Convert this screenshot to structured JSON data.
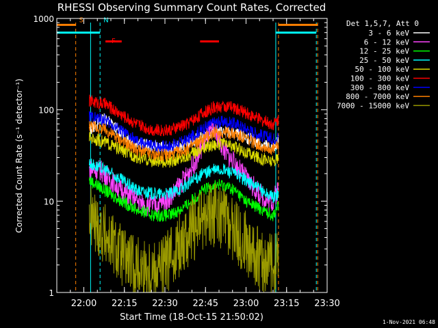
{
  "chart_data": {
    "type": "line",
    "title": "RHESSI Observing Summary Count Rates, Corrected",
    "xlabel": "Start Time (18-Oct-15 21:50:02)",
    "ylabel": "Corrected Count Rate (s⁻¹ detector⁻¹)",
    "yscale": "log",
    "ylim": [
      1,
      1000
    ],
    "xlim_minutes": [
      -10,
      90
    ],
    "x_ticks": [
      {
        "t": 0,
        "label": "22:00"
      },
      {
        "t": 15,
        "label": "22:15"
      },
      {
        "t": 30,
        "label": "22:30"
      },
      {
        "t": 45,
        "label": "22:45"
      },
      {
        "t": 60,
        "label": "23:00"
      },
      {
        "t": 75,
        "label": "23:15"
      },
      {
        "t": 90,
        "label": "23:30"
      }
    ],
    "y_ticks": [
      {
        "v": 1,
        "label": "1"
      },
      {
        "v": 10,
        "label": "10"
      },
      {
        "v": 100,
        "label": "100"
      },
      {
        "v": 1000,
        "label": "1000"
      }
    ],
    "legend_title": "Det 1,5,7, Att 0",
    "legend_position": "right",
    "series": [
      {
        "name": "3 - 6 keV",
        "color": "#ffffff",
        "points": [
          [
            2,
            60
          ],
          [
            8,
            82
          ],
          [
            12,
            62
          ],
          [
            18,
            46
          ],
          [
            24,
            40
          ],
          [
            30,
            38
          ],
          [
            36,
            40
          ],
          [
            42,
            48
          ],
          [
            48,
            58
          ],
          [
            54,
            56
          ],
          [
            60,
            50
          ],
          [
            66,
            42
          ],
          [
            70,
            38
          ],
          [
            72,
            46
          ]
        ]
      },
      {
        "name": "6 - 12 keV",
        "color": "#ff44ff",
        "points": [
          [
            2,
            22
          ],
          [
            6,
            22
          ],
          [
            10,
            17
          ],
          [
            14,
            13
          ],
          [
            18,
            11
          ],
          [
            22,
            9
          ],
          [
            26,
            9
          ],
          [
            30,
            10
          ],
          [
            34,
            13
          ],
          [
            38,
            19
          ],
          [
            42,
            30
          ],
          [
            45,
            48
          ],
          [
            48,
            60
          ],
          [
            52,
            36
          ],
          [
            56,
            25
          ],
          [
            60,
            18
          ],
          [
            64,
            13
          ],
          [
            68,
            10
          ],
          [
            70,
            10
          ],
          [
            72,
            14
          ]
        ]
      },
      {
        "name": "12 - 25 keV",
        "color": "#00ff00",
        "points": [
          [
            2,
            17
          ],
          [
            8,
            13
          ],
          [
            14,
            10
          ],
          [
            20,
            8
          ],
          [
            26,
            7
          ],
          [
            32,
            7
          ],
          [
            38,
            9
          ],
          [
            44,
            13
          ],
          [
            48,
            15
          ],
          [
            52,
            15
          ],
          [
            56,
            13
          ],
          [
            60,
            10
          ],
          [
            66,
            8
          ],
          [
            70,
            7
          ],
          [
            72,
            9
          ]
        ]
      },
      {
        "name": "25 - 50 keV",
        "color": "#00ffff",
        "points": [
          [
            2,
            26
          ],
          [
            8,
            22
          ],
          [
            14,
            17
          ],
          [
            20,
            13
          ],
          [
            26,
            12
          ],
          [
            32,
            12
          ],
          [
            38,
            15
          ],
          [
            44,
            20
          ],
          [
            48,
            22
          ],
          [
            52,
            22
          ],
          [
            56,
            20
          ],
          [
            60,
            17
          ],
          [
            66,
            13
          ],
          [
            70,
            11
          ],
          [
            72,
            12
          ]
        ]
      },
      {
        "name": "50 - 100 keV",
        "color": "#dddd00",
        "points": [
          [
            2,
            50
          ],
          [
            8,
            44
          ],
          [
            14,
            36
          ],
          [
            20,
            30
          ],
          [
            26,
            27
          ],
          [
            32,
            27
          ],
          [
            38,
            31
          ],
          [
            44,
            38
          ],
          [
            48,
            42
          ],
          [
            52,
            42
          ],
          [
            56,
            39
          ],
          [
            60,
            34
          ],
          [
            66,
            29
          ],
          [
            70,
            27
          ],
          [
            72,
            30
          ]
        ]
      },
      {
        "name": "100 - 300 keV",
        "color": "#ff0000",
        "points": [
          [
            2,
            125
          ],
          [
            8,
            115
          ],
          [
            14,
            88
          ],
          [
            20,
            68
          ],
          [
            26,
            60
          ],
          [
            32,
            60
          ],
          [
            38,
            70
          ],
          [
            44,
            92
          ],
          [
            48,
            105
          ],
          [
            52,
            110
          ],
          [
            56,
            104
          ],
          [
            60,
            92
          ],
          [
            66,
            76
          ],
          [
            70,
            70
          ],
          [
            72,
            78
          ]
        ]
      },
      {
        "name": "300 - 800 keV",
        "color": "#0000ff",
        "points": [
          [
            2,
            84
          ],
          [
            8,
            77
          ],
          [
            14,
            58
          ],
          [
            20,
            44
          ],
          [
            26,
            40
          ],
          [
            32,
            40
          ],
          [
            38,
            46
          ],
          [
            44,
            62
          ],
          [
            48,
            72
          ],
          [
            52,
            74
          ],
          [
            56,
            70
          ],
          [
            60,
            62
          ],
          [
            66,
            52
          ],
          [
            70,
            48
          ],
          [
            72,
            52
          ]
        ]
      },
      {
        "name": "800 - 7000 keV",
        "color": "#ff8000",
        "points": [
          [
            2,
            68
          ],
          [
            8,
            60
          ],
          [
            14,
            46
          ],
          [
            20,
            36
          ],
          [
            26,
            32
          ],
          [
            32,
            32
          ],
          [
            38,
            37
          ],
          [
            44,
            48
          ],
          [
            48,
            55
          ],
          [
            52,
            57
          ],
          [
            56,
            54
          ],
          [
            60,
            48
          ],
          [
            66,
            40
          ],
          [
            70,
            37
          ],
          [
            72,
            40
          ]
        ]
      },
      {
        "name": "7000 - 15000 keV",
        "color": "#999900",
        "points": [
          [
            2,
            7
          ],
          [
            6,
            5
          ],
          [
            10,
            3.5
          ],
          [
            14,
            2.5
          ],
          [
            18,
            2
          ],
          [
            22,
            1.8
          ],
          [
            26,
            1.8
          ],
          [
            30,
            2
          ],
          [
            34,
            3
          ],
          [
            38,
            4
          ],
          [
            42,
            5.5
          ],
          [
            46,
            7
          ],
          [
            50,
            7
          ],
          [
            54,
            5.5
          ],
          [
            58,
            4
          ],
          [
            62,
            3
          ],
          [
            66,
            2.2
          ],
          [
            70,
            2
          ],
          [
            72,
            2.5
          ]
        ]
      }
    ],
    "annotations": [
      {
        "label": "S",
        "color": "#ff8000",
        "t": -3
      },
      {
        "label": "N",
        "color": "#00ffff",
        "t": 6
      },
      {
        "label": "F",
        "color": "#ff0000",
        "t": 9
      }
    ],
    "marker_lines": [
      {
        "t": -3,
        "color": "#ff8000",
        "dashed": true
      },
      {
        "t": 6,
        "color": "#00ffff",
        "dashed": true
      },
      {
        "t": 2.5,
        "color": "#00ffff",
        "dashed": false
      },
      {
        "t": 71,
        "color": "#00ffff",
        "dashed": false
      },
      {
        "t": 72,
        "color": "#ff8000",
        "dashed": true
      },
      {
        "t": 86,
        "color": "#00ffff",
        "dashed": true
      },
      {
        "t": 86.5,
        "color": "#ff8000",
        "dashed": true
      }
    ],
    "bars": [
      {
        "color": "#ff8000",
        "level": 850,
        "ranges": [
          [
            -10,
            -3
          ],
          [
            72,
            86.5
          ]
        ]
      },
      {
        "color": "#00ffff",
        "level": 700,
        "ranges": [
          [
            -10,
            6
          ],
          [
            71,
            86
          ]
        ]
      },
      {
        "color": "#ff0000",
        "level": 560,
        "ranges": [
          [
            8,
            14
          ],
          [
            43,
            50
          ]
        ]
      }
    ],
    "footer": "1-Nov-2021 06:48"
  }
}
